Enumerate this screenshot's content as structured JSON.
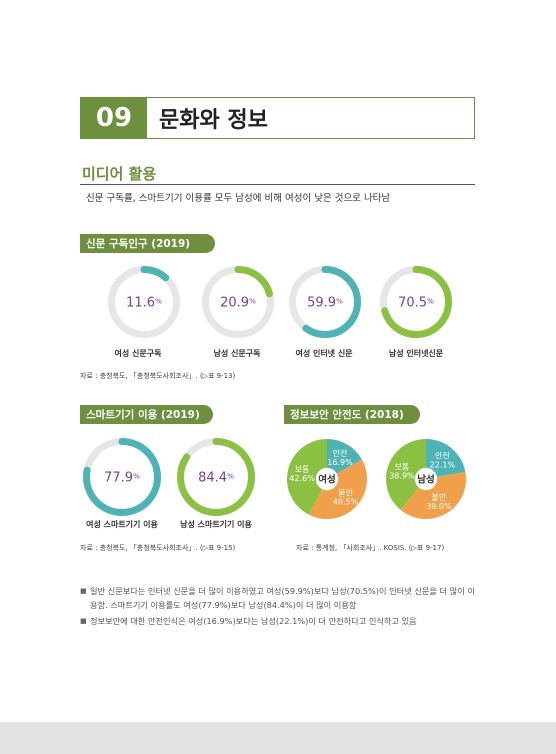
{
  "chapter": {
    "number": "09",
    "title": "문화와 정보"
  },
  "section": {
    "title": "미디어 활용",
    "subtitle": "신문 구독률, 스마트기기 이용률 모두 남성에 비해 여성이 낮은 것으로 나타남"
  },
  "newspaper": {
    "title": "신문 구독인구 (2019)",
    "items": [
      {
        "value": "11.6",
        "unit": "%",
        "pct": 11.6,
        "label": "여성 신문구독",
        "color": "#4fb3b5"
      },
      {
        "value": "20.9",
        "unit": "%",
        "pct": 20.9,
        "label": "남성 신문구독",
        "color": "#8cc043"
      },
      {
        "value": "59.9",
        "unit": "%",
        "pct": 59.9,
        "label": "여성 인터넷 신문",
        "color": "#4fb3b5"
      },
      {
        "value": "70.5",
        "unit": "%",
        "pct": 70.5,
        "label": "남성 인터넷신문",
        "color": "#8cc043"
      }
    ],
    "source": "자료 : 충청북도, 「충청북도사회조사」. (▷표 9-13)"
  },
  "smart": {
    "title": "스마트기기 이용 (2019)",
    "items": [
      {
        "value": "77.9",
        "unit": "%",
        "pct": 77.9,
        "label": "여성 스마트기기 이용",
        "color": "#4fb3b5"
      },
      {
        "value": "84.4",
        "unit": "%",
        "pct": 84.4,
        "label": "남성 스마트기기 이용",
        "color": "#8cc043"
      }
    ],
    "source": "자료 : 충청북도, 「충청북도사회조사」. (▷표 9-15)"
  },
  "security": {
    "title": "정보보안 안전도 (2018)",
    "pies": [
      {
        "center": "여성",
        "slices": [
          {
            "name": "안전",
            "value": 16.9,
            "display": "16.9%",
            "color": "#4fb3b5"
          },
          {
            "name": "불안",
            "value": 40.5,
            "display": "40.5%",
            "color": "#f0a04b"
          },
          {
            "name": "보통",
            "value": 42.6,
            "display": "42.6%",
            "color": "#8cc043"
          }
        ]
      },
      {
        "center": "남성",
        "slices": [
          {
            "name": "안전",
            "value": 22.1,
            "display": "22.1%",
            "color": "#4fb3b5"
          },
          {
            "name": "불안",
            "value": 39.0,
            "display": "39.0%",
            "color": "#f0a04b"
          },
          {
            "name": "보통",
            "value": 38.9,
            "display": "38.9%",
            "color": "#8cc043"
          }
        ]
      }
    ],
    "source": "자료 : 통계청, 「사회조사」. KOSIS. (▷표 9-17)"
  },
  "bullets": [
    "일반 신문보다는 인터넷 신문을 더 많이 이용하였고 여성(59.9%)보다 남성(70.5%)이 인터넷 신문을 더 많이 이용함. 스마트기기 이용률도 여성(77.9%)보다 남성(84.4%)이 더 많이 이용함",
    "정보보안에 대한 안전인식은 여성(16.9%)보다는 남성(22.1%)이 더 안전하다고 인식하고 있음"
  ],
  "colors": {
    "primary": "#6d8f3e",
    "teal": "#4fb3b5",
    "green": "#8cc043",
    "orange": "#f0a04b",
    "value_text": "#7a3f8f"
  }
}
